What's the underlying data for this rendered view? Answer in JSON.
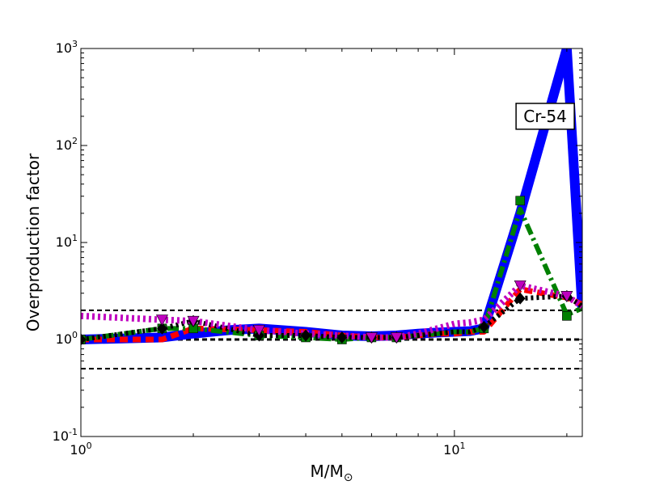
{
  "chart_data": {
    "type": "line",
    "xscale": "log",
    "yscale": "log",
    "xlim": [
      1,
      22
    ],
    "ylim": [
      0.1,
      1000
    ],
    "xlabel": "M/M",
    "xlabel_subscript": "⊙",
    "ylabel": "Overproduction factor",
    "x_ticks": [
      {
        "value": 1,
        "base": "10",
        "exp": "0"
      },
      {
        "value": 10,
        "base": "10",
        "exp": "1"
      }
    ],
    "y_ticks": [
      {
        "value": 0.1,
        "base": "10",
        "exp": "-1"
      },
      {
        "value": 1,
        "base": "10",
        "exp": "0"
      },
      {
        "value": 10,
        "base": "10",
        "exp": "1"
      },
      {
        "value": 100,
        "base": "10",
        "exp": "2"
      },
      {
        "value": 1000,
        "base": "10",
        "exp": "3"
      }
    ],
    "grid": false,
    "annotation": {
      "text": "Cr-54",
      "x": 17.5,
      "y": 200
    },
    "reference_lines": [
      {
        "y": 2,
        "color": "#000000",
        "style": "dashed"
      },
      {
        "y": 1,
        "color": "#000000",
        "style": "dashed-bold"
      },
      {
        "y": 0.5,
        "color": "#000000",
        "style": "dashed"
      }
    ],
    "series": [
      {
        "color": "#0000ff",
        "style": "solid",
        "width": 12,
        "marker": "none",
        "x": [
          1,
          1.65,
          2,
          2.5,
          3,
          4,
          5,
          6,
          7,
          8,
          9,
          10,
          11,
          12,
          15,
          20,
          22
        ],
        "y": [
          1.0,
          1.05,
          1.15,
          1.25,
          1.3,
          1.2,
          1.1,
          1.08,
          1.1,
          1.15,
          1.18,
          1.2,
          1.22,
          1.3,
          20,
          1000,
          2.0
        ]
      },
      {
        "color": "#ff0000",
        "style": "dashed",
        "width": 7,
        "marker": "none",
        "x": [
          1,
          1.65,
          2,
          3,
          4,
          5,
          6,
          7,
          8,
          9,
          10,
          11,
          12,
          15,
          20,
          22
        ],
        "y": [
          1.0,
          1.0,
          1.3,
          1.25,
          1.2,
          1.1,
          1.05,
          1.05,
          1.1,
          1.15,
          1.15,
          1.2,
          1.2,
          3.3,
          2.7,
          2.3
        ]
      },
      {
        "color": "#008000",
        "style": "dashdot",
        "width": 6,
        "marker": "square",
        "markers_x": [
          1,
          1.65,
          2,
          3,
          4,
          5,
          6,
          7,
          12,
          15,
          20
        ],
        "markers_y": [
          1.0,
          1.3,
          1.3,
          1.1,
          1.05,
          1.0,
          1.05,
          1.05,
          1.3,
          27,
          1.75
        ],
        "x": [
          1,
          1.65,
          2,
          3,
          4,
          5,
          6,
          7,
          8,
          9,
          10,
          11,
          12,
          15,
          20,
          22
        ],
        "y": [
          1.0,
          1.3,
          1.3,
          1.1,
          1.05,
          1.0,
          1.05,
          1.05,
          1.1,
          1.15,
          1.2,
          1.2,
          1.3,
          22,
          1.8,
          2.1
        ]
      },
      {
        "color": "#000000",
        "style": "dotted",
        "width": 6,
        "marker": "diamond",
        "markers_x": [
          1,
          1.65,
          2,
          3,
          4,
          5,
          6,
          7,
          12,
          15,
          20
        ],
        "markers_y": [
          1.0,
          1.3,
          1.55,
          1.1,
          1.1,
          1.05,
          1.05,
          1.05,
          1.35,
          2.65,
          2.8
        ],
        "x": [
          1,
          1.65,
          2,
          3,
          4,
          5,
          6,
          7,
          8,
          9,
          10,
          11,
          12,
          15,
          20,
          22
        ],
        "y": [
          1.0,
          1.3,
          1.55,
          1.1,
          1.1,
          1.05,
          1.05,
          1.05,
          1.1,
          1.15,
          1.2,
          1.2,
          1.35,
          2.65,
          2.8,
          2.2
        ]
      },
      {
        "color": "#bf00bf",
        "style": "dotted",
        "width": 8,
        "marker": "triangle-down",
        "markers_x": [
          1.65,
          2,
          3,
          6,
          7,
          15,
          20
        ],
        "markers_y": [
          1.6,
          1.55,
          1.25,
          1.05,
          1.05,
          3.6,
          2.8
        ],
        "x": [
          1,
          1.65,
          2,
          3,
          4,
          5,
          6,
          7,
          8,
          9,
          10,
          11,
          12,
          15,
          20,
          22
        ],
        "y": [
          1.75,
          1.6,
          1.55,
          1.25,
          1.15,
          1.1,
          1.05,
          1.05,
          1.15,
          1.3,
          1.45,
          1.5,
          1.6,
          3.6,
          2.8,
          2.2
        ]
      }
    ]
  }
}
